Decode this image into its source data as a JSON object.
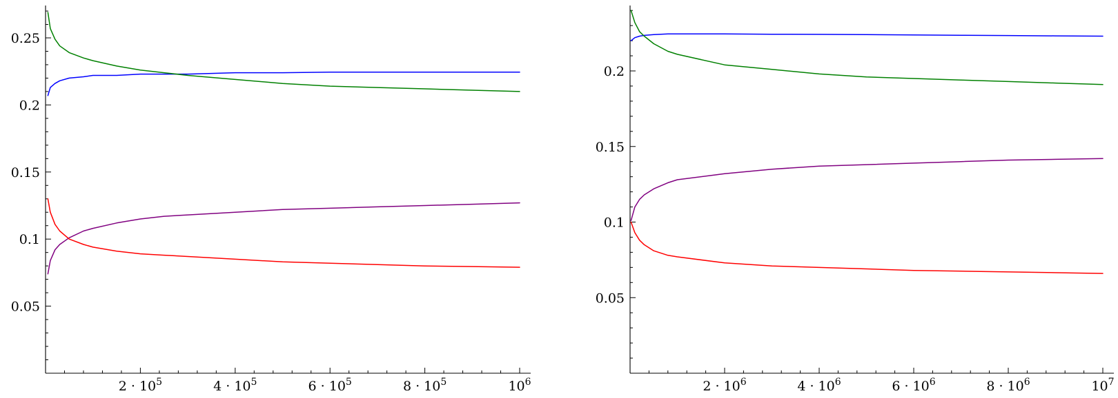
{
  "chart_data": [
    {
      "type": "line",
      "title": "",
      "xlabel": "",
      "ylabel": "",
      "xlim": [
        0,
        1000000
      ],
      "ylim": [
        0,
        0.27
      ],
      "grid": false,
      "x_ticks": [
        {
          "value": 200000,
          "base": "2 · 10",
          "exp": "5"
        },
        {
          "value": 400000,
          "base": "4 · 10",
          "exp": "5"
        },
        {
          "value": 600000,
          "base": "6 · 10",
          "exp": "5"
        },
        {
          "value": 800000,
          "base": "8 · 10",
          "exp": "5"
        },
        {
          "value": 1000000,
          "base": "10",
          "exp": "6"
        }
      ],
      "y_ticks": [
        {
          "value": 0.05,
          "label": "0.05"
        },
        {
          "value": 0.1,
          "label": "0.1"
        },
        {
          "value": 0.15,
          "label": "0.15"
        },
        {
          "value": 0.2,
          "label": "0.2"
        },
        {
          "value": 0.25,
          "label": "0.25"
        }
      ],
      "series": [
        {
          "color": "#0000ff",
          "x": [
            5000,
            10000,
            20000,
            30000,
            50000,
            80000,
            100000,
            150000,
            200000,
            250000,
            300000,
            400000,
            500000,
            600000,
            700000,
            800000,
            900000,
            1000000
          ],
          "y": [
            0.207,
            0.213,
            0.216,
            0.218,
            0.22,
            0.221,
            0.222,
            0.222,
            0.223,
            0.223,
            0.223,
            0.224,
            0.224,
            0.2245,
            0.2245,
            0.2245,
            0.2245,
            0.2245
          ]
        },
        {
          "color": "#008000",
          "x": [
            5000,
            10000,
            20000,
            30000,
            50000,
            80000,
            100000,
            150000,
            200000,
            250000,
            300000,
            400000,
            500000,
            600000,
            700000,
            800000,
            900000,
            1000000
          ],
          "y": [
            0.269,
            0.257,
            0.249,
            0.244,
            0.239,
            0.235,
            0.233,
            0.229,
            0.226,
            0.224,
            0.222,
            0.219,
            0.216,
            0.214,
            0.213,
            0.212,
            0.211,
            0.21
          ]
        },
        {
          "color": "#800080",
          "x": [
            5000,
            10000,
            20000,
            30000,
            50000,
            80000,
            100000,
            150000,
            200000,
            250000,
            300000,
            400000,
            500000,
            600000,
            700000,
            800000,
            900000,
            1000000
          ],
          "y": [
            0.074,
            0.084,
            0.092,
            0.096,
            0.101,
            0.106,
            0.108,
            0.112,
            0.115,
            0.117,
            0.118,
            0.12,
            0.122,
            0.123,
            0.124,
            0.125,
            0.126,
            0.127
          ]
        },
        {
          "color": "#ff0000",
          "x": [
            5000,
            10000,
            20000,
            30000,
            50000,
            80000,
            100000,
            150000,
            200000,
            250000,
            300000,
            400000,
            500000,
            600000,
            700000,
            800000,
            900000,
            1000000
          ],
          "y": [
            0.13,
            0.12,
            0.111,
            0.106,
            0.1,
            0.096,
            0.094,
            0.091,
            0.089,
            0.088,
            0.087,
            0.085,
            0.083,
            0.082,
            0.081,
            0.08,
            0.0795,
            0.079
          ]
        }
      ]
    },
    {
      "type": "line",
      "title": "",
      "xlabel": "",
      "ylabel": "",
      "xlim": [
        0,
        10000000
      ],
      "ylim": [
        0,
        0.245
      ],
      "grid": false,
      "x_ticks": [
        {
          "value": 2000000,
          "base": "2 · 10",
          "exp": "6"
        },
        {
          "value": 4000000,
          "base": "4 · 10",
          "exp": "6"
        },
        {
          "value": 6000000,
          "base": "6 · 10",
          "exp": "6"
        },
        {
          "value": 8000000,
          "base": "8 · 10",
          "exp": "6"
        },
        {
          "value": 10000000,
          "base": "10",
          "exp": "7"
        }
      ],
      "y_ticks": [
        {
          "value": 0.05,
          "label": "0.05"
        },
        {
          "value": 0.1,
          "label": "0.1"
        },
        {
          "value": 0.15,
          "label": "0.15"
        },
        {
          "value": 0.2,
          "label": "0.2"
        }
      ],
      "series": [
        {
          "color": "#0000ff",
          "x": [
            20000,
            100000,
            200000,
            300000,
            500000,
            800000,
            1000000,
            2000000,
            3000000,
            4000000,
            5000000,
            6000000,
            7000000,
            8000000,
            9000000,
            10000000
          ],
          "y": [
            0.22,
            0.222,
            0.223,
            0.2235,
            0.224,
            0.2245,
            0.2245,
            0.2245,
            0.2243,
            0.2242,
            0.224,
            0.2238,
            0.2236,
            0.2234,
            0.2232,
            0.223
          ]
        },
        {
          "color": "#008000",
          "x": [
            20000,
            100000,
            200000,
            300000,
            500000,
            800000,
            1000000,
            2000000,
            3000000,
            4000000,
            5000000,
            6000000,
            7000000,
            8000000,
            9000000,
            10000000
          ],
          "y": [
            0.24,
            0.232,
            0.226,
            0.223,
            0.218,
            0.213,
            0.211,
            0.204,
            0.201,
            0.198,
            0.196,
            0.195,
            0.194,
            0.193,
            0.192,
            0.191
          ]
        },
        {
          "color": "#800080",
          "x": [
            20000,
            100000,
            200000,
            300000,
            500000,
            800000,
            1000000,
            2000000,
            3000000,
            4000000,
            5000000,
            6000000,
            7000000,
            8000000,
            9000000,
            10000000
          ],
          "y": [
            0.101,
            0.11,
            0.115,
            0.118,
            0.122,
            0.126,
            0.128,
            0.132,
            0.135,
            0.137,
            0.138,
            0.139,
            0.14,
            0.141,
            0.1415,
            0.142
          ]
        },
        {
          "color": "#ff0000",
          "x": [
            20000,
            100000,
            200000,
            300000,
            500000,
            800000,
            1000000,
            2000000,
            3000000,
            4000000,
            5000000,
            6000000,
            7000000,
            8000000,
            9000000,
            10000000
          ],
          "y": [
            0.1,
            0.093,
            0.088,
            0.085,
            0.081,
            0.078,
            0.077,
            0.073,
            0.071,
            0.07,
            0.069,
            0.068,
            0.0675,
            0.067,
            0.0665,
            0.066
          ]
        }
      ]
    }
  ]
}
